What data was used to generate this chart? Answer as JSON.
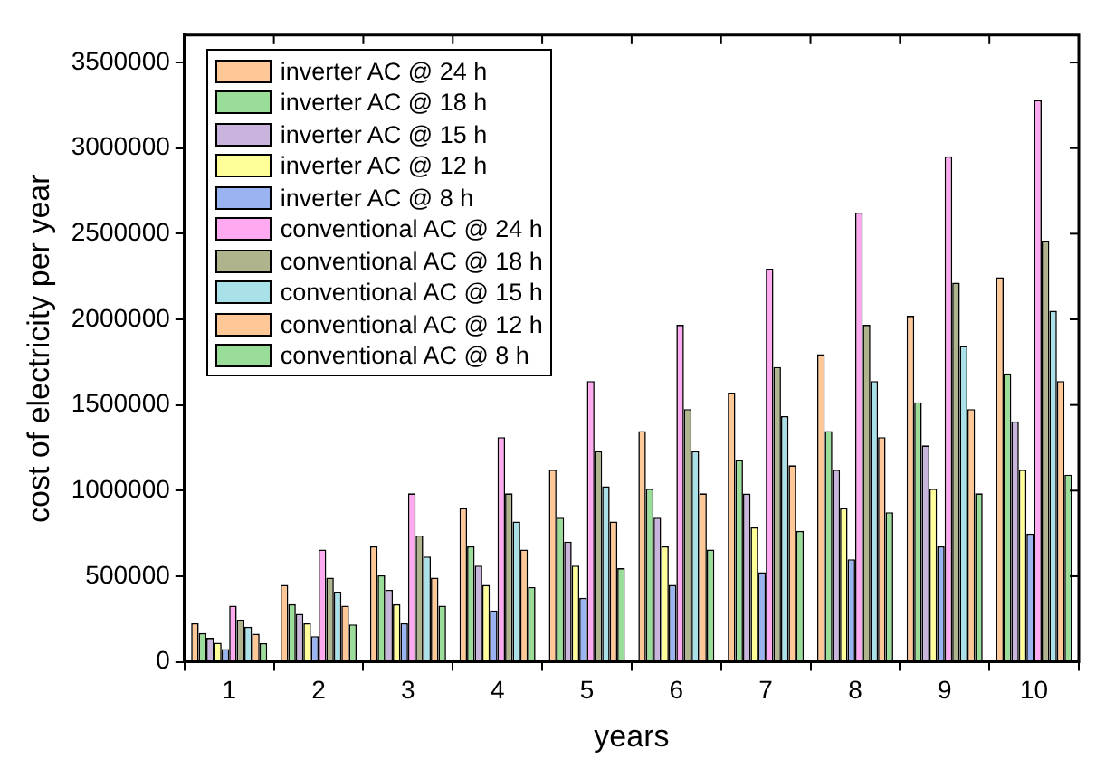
{
  "chart_data": {
    "type": "bar",
    "xlabel": "years",
    "ylabel": "cost of electricity per year",
    "categories": [
      "1",
      "2",
      "3",
      "4",
      "5",
      "6",
      "7",
      "8",
      "9",
      "10"
    ],
    "ylim": [
      0,
      3660000
    ],
    "yticks": [
      0,
      500000,
      1000000,
      1500000,
      2000000,
      2500000,
      3000000,
      3500000
    ],
    "grid": false,
    "legend": "top left",
    "series": [
      {
        "name": "inverter AC @ 24 h",
        "color": "#ffc896",
        "values": [
          225000,
          449000,
          674000,
          898000,
          1123000,
          1348000,
          1572000,
          1797000,
          2021000,
          2246000
        ]
      },
      {
        "name": "inverter AC @ 18 h",
        "color": "#99dd99",
        "values": [
          168000,
          337000,
          505000,
          674000,
          842000,
          1011000,
          1179000,
          1348000,
          1516000,
          1684000
        ]
      },
      {
        "name": "inverter AC @ 15 h",
        "color": "#c8b4dc",
        "values": [
          140000,
          281000,
          421000,
          562000,
          702000,
          842000,
          983000,
          1123000,
          1264000,
          1404000
        ]
      },
      {
        "name": "inverter AC @ 12 h",
        "color": "#ffff99",
        "values": [
          112000,
          225000,
          337000,
          449000,
          562000,
          674000,
          786000,
          898000,
          1011000,
          1123000
        ]
      },
      {
        "name": "inverter AC @ 8 h",
        "color": "#99b4f0",
        "values": [
          75000,
          150000,
          225000,
          300000,
          374000,
          449000,
          524000,
          599000,
          674000,
          749000
        ]
      },
      {
        "name": "conventional AC @ 24 h",
        "color": "#ffaaf0",
        "values": [
          328000,
          656000,
          984000,
          1312000,
          1640000,
          1968000,
          2296000,
          2624000,
          2952000,
          3280000
        ]
      },
      {
        "name": "conventional AC @ 18 h",
        "color": "#b0b48c",
        "values": [
          246000,
          492000,
          738000,
          984000,
          1230000,
          1476000,
          1722000,
          1968000,
          2214000,
          2460000
        ]
      },
      {
        "name": "conventional AC @ 15 h",
        "color": "#aae0e8",
        "values": [
          205000,
          410000,
          615000,
          820000,
          1025000,
          1230000,
          1435000,
          1640000,
          1845000,
          2050000
        ]
      },
      {
        "name": "conventional AC @ 12 h",
        "color": "#ffc896",
        "values": [
          164000,
          328000,
          492000,
          656000,
          820000,
          984000,
          1148000,
          1312000,
          1476000,
          1640000
        ]
      },
      {
        "name": "conventional AC @ 8 h",
        "color": "#99dd99",
        "values": [
          109000,
          219000,
          328000,
          437000,
          547000,
          656000,
          765000,
          874000,
          984000,
          1093000
        ]
      }
    ]
  }
}
